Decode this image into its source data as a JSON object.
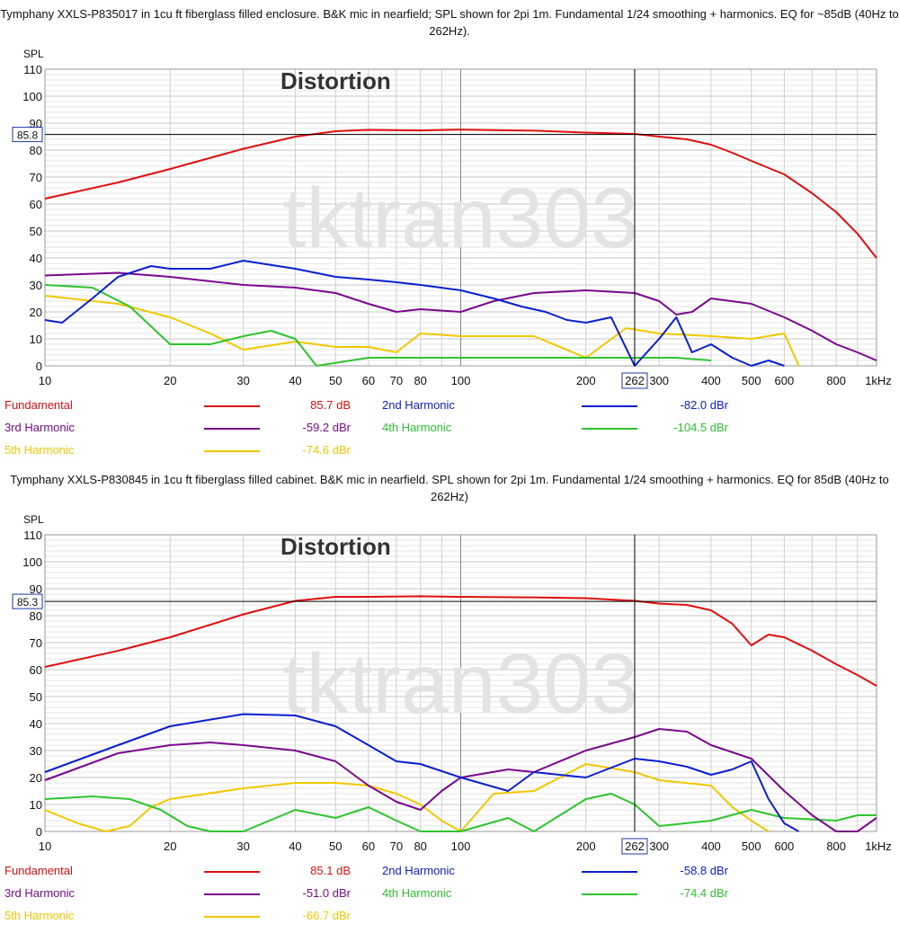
{
  "watermark": "tktran303",
  "chart_data": [
    {
      "type": "line",
      "title": "Tymphany XXLS-P835017 in 1cu ft fiberglass filled enclosure. B&K mic in nearfield; SPL shown for 2pi 1m. Fundamental 1/24 smoothing + harmonics. EQ for ~85dB (40Hz to 262Hz).",
      "overlay_label": "Distortion",
      "ylabel": "SPL",
      "xlabel": "",
      "x_scale": "log",
      "xlim": [
        10,
        1000
      ],
      "ylim": [
        0,
        110
      ],
      "grid": true,
      "x_ticks": [
        "10",
        "20",
        "30",
        "40",
        "50",
        "60",
        "70",
        "80",
        "100",
        "200",
        "300",
        "400",
        "500",
        "600",
        "800",
        "1kHz"
      ],
      "y_ticks": [
        "0",
        "10",
        "20",
        "30",
        "40",
        "50",
        "60",
        "70",
        "80",
        "90",
        "100",
        "110"
      ],
      "cursor": {
        "x": 262,
        "x_label": "262",
        "y": 85.8,
        "y_label": "85.8"
      },
      "series": [
        {
          "name": "Fundamental",
          "color": "#e01010",
          "legend_value": "85.7 dB",
          "x": [
            10,
            15,
            20,
            30,
            40,
            50,
            60,
            80,
            100,
            150,
            200,
            262,
            300,
            350,
            400,
            450,
            500,
            600,
            700,
            800,
            900,
            1000
          ],
          "y": [
            62,
            68,
            73,
            80.5,
            85,
            87,
            87.5,
            87.3,
            87.6,
            87.2,
            86.5,
            86,
            85,
            84,
            82,
            79,
            76,
            71,
            64,
            57,
            49,
            40
          ]
        },
        {
          "name": "2nd Harmonic",
          "color": "#0a1fd0",
          "legend_value": "-82.0 dBr",
          "x": [
            10,
            11,
            13,
            15,
            18,
            20,
            25,
            30,
            40,
            50,
            60,
            70,
            80,
            100,
            120,
            140,
            160,
            180,
            200,
            230,
            262,
            300,
            330,
            360,
            400,
            450,
            500,
            550,
            600
          ],
          "y": [
            17,
            16,
            25,
            33,
            37,
            36,
            36,
            39,
            36,
            33,
            32,
            31,
            30,
            28,
            25,
            22,
            20,
            17,
            16,
            18,
            0,
            10,
            18,
            5,
            8,
            3,
            0,
            2,
            0
          ]
        },
        {
          "name": "3rd Harmonic",
          "color": "#7a0a8c",
          "legend_value": "-59.2 dBr",
          "x": [
            10,
            15,
            20,
            30,
            40,
            50,
            60,
            70,
            80,
            100,
            120,
            150,
            200,
            262,
            300,
            330,
            360,
            400,
            500,
            600,
            700,
            800,
            900,
            1000
          ],
          "y": [
            33.5,
            34.5,
            33,
            30,
            29,
            27,
            23,
            20,
            21,
            20,
            24,
            27,
            28,
            27,
            24,
            19,
            20,
            25,
            23,
            18,
            13,
            8,
            5,
            2
          ]
        },
        {
          "name": "4th Harmonic",
          "color": "#2ec42e",
          "legend_value": "-104.5 dBr",
          "x": [
            10,
            13,
            16,
            20,
            25,
            30,
            35,
            40,
            45,
            60,
            80,
            100,
            120,
            200,
            330,
            400
          ],
          "y": [
            30,
            29,
            22,
            8,
            8,
            11,
            13,
            10,
            0,
            3,
            3,
            3,
            3,
            3,
            3,
            2
          ]
        },
        {
          "name": "5th Harmonic",
          "color": "#f0c800",
          "legend_value": "-74.6 dBr",
          "x": [
            10,
            15,
            20,
            25,
            30,
            40,
            50,
            60,
            70,
            80,
            100,
            150,
            200,
            250,
            300,
            400,
            500,
            600,
            650
          ],
          "y": [
            26,
            23,
            18,
            12,
            6,
            9,
            7,
            7,
            5,
            12,
            11,
            11,
            3,
            14,
            12,
            11,
            10,
            12,
            0
          ]
        }
      ]
    },
    {
      "type": "line",
      "title": "Tymphany XXLS-P830845 in 1cu ft fiberglass filled cabinet. B&K mic in nearfield. SPL shown for 2pi 1m. Fundamental 1/24 smoothing + harmonics. EQ for 85dB (40Hz to 262Hz)",
      "overlay_label": "Distortion",
      "ylabel": "SPL",
      "xlabel": "",
      "x_scale": "log",
      "xlim": [
        10,
        1000
      ],
      "ylim": [
        0,
        110
      ],
      "grid": true,
      "x_ticks": [
        "10",
        "20",
        "30",
        "40",
        "50",
        "60",
        "70",
        "80",
        "100",
        "200",
        "300",
        "400",
        "500",
        "600",
        "800",
        "1kHz"
      ],
      "y_ticks": [
        "0",
        "10",
        "20",
        "30",
        "40",
        "50",
        "60",
        "70",
        "80",
        "90",
        "100",
        "110"
      ],
      "cursor": {
        "x": 262,
        "x_label": "262",
        "y": 85.3,
        "y_label": "85.3"
      },
      "series": [
        {
          "name": "Fundamental",
          "color": "#e01010",
          "legend_value": "85.1 dB",
          "x": [
            10,
            15,
            20,
            30,
            40,
            50,
            60,
            80,
            100,
            150,
            200,
            262,
            300,
            350,
            400,
            450,
            500,
            550,
            600,
            700,
            800,
            900,
            1000
          ],
          "y": [
            61,
            67,
            72,
            80.5,
            85.5,
            87,
            87,
            87.2,
            87,
            86.8,
            86.5,
            85.5,
            84.5,
            84,
            82,
            77,
            69,
            73,
            72,
            67,
            62,
            58,
            54
          ]
        },
        {
          "name": "2nd Harmonic",
          "color": "#0a1fd0",
          "legend_value": "-58.8 dBr",
          "x": [
            10,
            15,
            20,
            30,
            40,
            50,
            60,
            70,
            80,
            100,
            130,
            150,
            200,
            262,
            300,
            350,
            400,
            450,
            500,
            550,
            600,
            650
          ],
          "y": [
            22,
            32,
            39,
            43.5,
            43,
            39,
            32,
            26,
            25,
            20,
            15,
            22,
            20,
            27,
            26,
            24,
            21,
            23,
            26,
            12,
            3,
            0
          ]
        },
        {
          "name": "3rd Harmonic",
          "color": "#7a0a8c",
          "legend_value": "-51.0 dBr",
          "x": [
            10,
            15,
            20,
            25,
            30,
            40,
            50,
            60,
            70,
            80,
            90,
            100,
            130,
            150,
            200,
            262,
            300,
            350,
            400,
            500,
            600,
            700,
            800,
            900,
            1000
          ],
          "y": [
            19,
            29,
            32,
            33,
            32,
            30,
            26,
            17,
            11,
            8,
            15,
            20,
            23,
            22,
            30,
            35,
            38,
            37,
            32,
            27,
            15,
            6,
            0,
            0,
            5
          ]
        },
        {
          "name": "4th Harmonic",
          "color": "#2ec42e",
          "legend_value": "-74.4 dBr",
          "x": [
            10,
            13,
            16,
            19,
            22,
            25,
            30,
            40,
            50,
            60,
            70,
            80,
            100,
            130,
            150,
            200,
            230,
            262,
            300,
            400,
            500,
            600,
            800,
            900,
            1000
          ],
          "y": [
            12,
            13,
            12,
            8,
            2,
            0,
            0,
            8,
            5,
            9,
            4,
            0,
            0,
            5,
            0,
            12,
            14,
            10,
            2,
            4,
            8,
            5,
            4,
            6,
            6
          ]
        },
        {
          "name": "5th Harmonic",
          "color": "#f0c800",
          "legend_value": "-66.7 dBr",
          "x": [
            10,
            12,
            14,
            16,
            18,
            20,
            30,
            40,
            50,
            60,
            70,
            80,
            90,
            100,
            120,
            150,
            200,
            262,
            300,
            400,
            450,
            500,
            550
          ],
          "y": [
            8,
            3,
            0,
            2,
            9,
            12,
            16,
            18,
            18,
            17,
            14,
            10,
            4,
            0,
            14,
            15,
            25,
            22,
            19,
            17,
            9,
            4,
            0
          ]
        }
      ]
    }
  ]
}
